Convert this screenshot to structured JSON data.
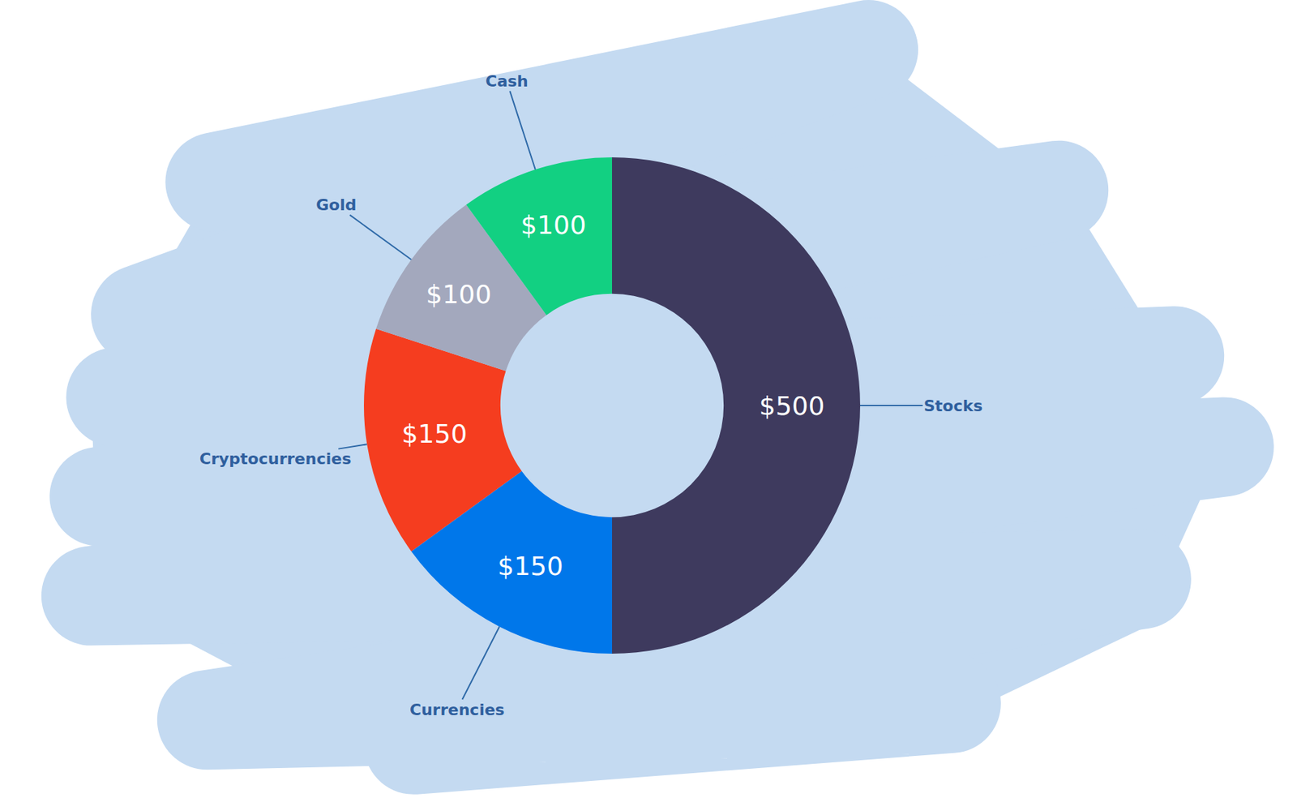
{
  "chart_data": {
    "type": "donut",
    "categories": [
      "Stocks",
      "Currencies",
      "Cryptocurrencies",
      "Gold",
      "Cash"
    ],
    "values": [
      500,
      150,
      150,
      100,
      100
    ],
    "value_labels": [
      "$500",
      "$150",
      "$150",
      "$100",
      "$100"
    ],
    "colors": [
      "#3e3a5e",
      "#0077ea",
      "#f53d1f",
      "#a3a8bd",
      "#12d082"
    ],
    "data_labels": true
  }
}
